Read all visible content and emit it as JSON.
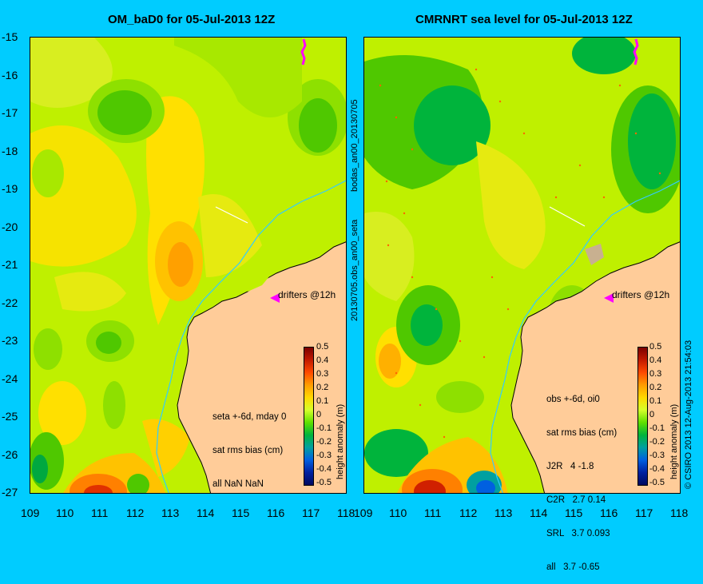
{
  "left_panel": {
    "title": "OM_baD0 for 05-Jul-2013 12Z",
    "info_lines": [
      "seta +-6d, mday 0",
      "sat rms bias (cm)",
      "all NaN NaN"
    ],
    "drifter_label": "drifters @12h"
  },
  "right_panel": {
    "title": "CMRNRT sea level  for 05-Jul-2013 12Z",
    "info_lines": [
      "obs +-6d, oi0",
      "sat rms bias (cm)",
      "J2R   4 -1.8",
      "C2R   2.7 0.14",
      "SRL   3.7 0.093",
      "all   3.7 -0.65"
    ],
    "drifter_label": "drifters @12h"
  },
  "y_axis_ticks": [
    "-15",
    "-16",
    "-17",
    "-18",
    "-19",
    "-20",
    "-21",
    "-22",
    "-23",
    "-24",
    "-25",
    "-26",
    "-27"
  ],
  "x_axis_ticks": [
    "109",
    "110",
    "111",
    "112",
    "113",
    "114",
    "115",
    "116",
    "117",
    "118"
  ],
  "colorbar": {
    "ticks": [
      "0.5",
      "0.4",
      "0.3",
      "0.2",
      "0.1",
      "0",
      "-0.1",
      "-0.2",
      "-0.3",
      "-0.4",
      "-0.5"
    ],
    "label": "height anomaly (m)"
  },
  "side_labels": {
    "top": "bodas_an00_20130705",
    "bottom": "20130705.obs_an00_seta"
  },
  "copyright": "© CSIRO 2013   12-Aug-2013 21:54:03",
  "colors": {
    "background": "#00ccff",
    "land": "#ffcc99",
    "sea_base": "#bff000",
    "coastline": "#000000",
    "bathymetry_contour": "#33ccff",
    "drifter": "#ff00ff"
  }
}
